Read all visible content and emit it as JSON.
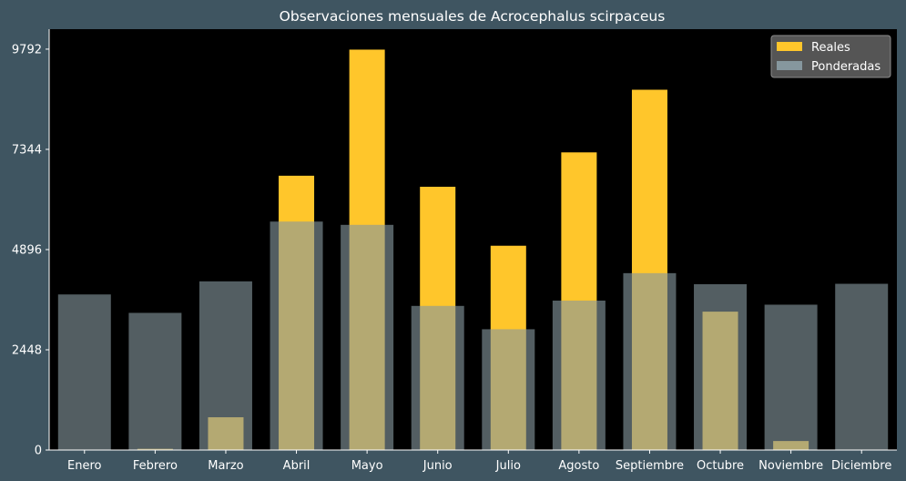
{
  "colors": {
    "figure_bg": "#3f5561",
    "plot_bg": "#000000",
    "reales": "#ffc62b",
    "ponderadas": "#86979e",
    "text": "#ffffff",
    "legend_bg": "#5a5a5a"
  },
  "chart_data": {
    "type": "bar",
    "title": "Observaciones mensuales de Acrocephalus scirpaceus",
    "xlabel": "",
    "ylabel": "",
    "categories": [
      "Enero",
      "Febrero",
      "Marzo",
      "Abril",
      "Mayo",
      "Junio",
      "Julio",
      "Agosto",
      "Septiembre",
      "Octubre",
      "Noviembre",
      "Diciembre"
    ],
    "yticks": [
      0,
      2448,
      4896,
      7344,
      9792
    ],
    "ytick_labels": [
      "0",
      "2448",
      "4896",
      "7344",
      "9792"
    ],
    "ylim": [
      0,
      10280
    ],
    "grid": false,
    "legend_position": "top-right",
    "series": [
      {
        "name": "Reales",
        "values": [
          0,
          30,
          800,
          6700,
          9780,
          6430,
          4990,
          7270,
          8800,
          3380,
          220,
          0
        ]
      },
      {
        "name": "Ponderadas",
        "values": [
          3800,
          3350,
          4120,
          5580,
          5500,
          3520,
          2950,
          3650,
          4320,
          4050,
          3550,
          4060
        ]
      }
    ]
  }
}
